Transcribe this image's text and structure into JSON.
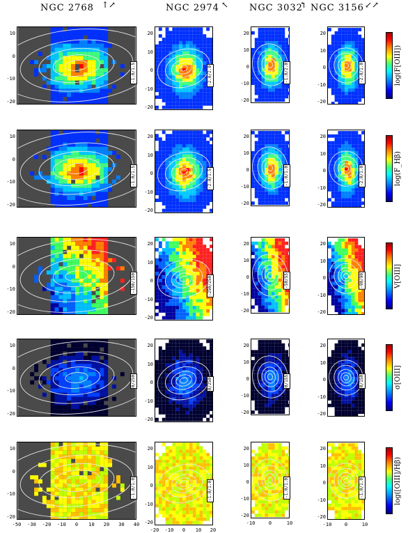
{
  "galaxies": [
    {
      "name": "NGC 2768",
      "compass": "↑↗"
    },
    {
      "name": "NGC 2974",
      "compass": "↖"
    },
    {
      "name": "NGC 3032",
      "compass": "↰"
    },
    {
      "name": "NGC 3156",
      "compass": "↙↗"
    }
  ],
  "rows": [
    {
      "quantity": "log(F[OIII])",
      "ranges": [
        "-1.0/1.5",
        "-2.0/2.0",
        "-1.0/2.0",
        "-2.0/1.0"
      ]
    },
    {
      "quantity": "log(F_Hβ)",
      "ranges": [
        "-1.0/1.5",
        "-2.0/1.5",
        "-1.0/1.0",
        "-2.0/1.0"
      ]
    },
    {
      "quantity": "V[OIII]",
      "ranges": [
        "-150/150",
        "-250/250",
        "-50/55",
        "-90/90"
      ]
    },
    {
      "quantity": "σ[OIII]",
      "ranges": [
        "0/250",
        "0/250",
        "0/155",
        "0/150"
      ]
    },
    {
      "quantity": "log([OIII]/Hβ)",
      "ranges": [
        "-1.0/1.0",
        "-1.0/1.0",
        "-1.0/1.0",
        "-1.0/1.0"
      ]
    }
  ],
  "axes": {
    "col1_y": [
      "10",
      "0",
      "-10",
      "-20"
    ],
    "col2_y": [
      "20",
      "10",
      "0",
      "-10",
      "-20"
    ],
    "col3_y": [
      "20",
      "10",
      "0",
      "-10",
      "-20"
    ],
    "col4_y": [
      "20",
      "10",
      "0",
      "-10",
      "-20"
    ],
    "col1_x": [
      "-50",
      "-30",
      "-20",
      "-10",
      "0",
      "10",
      "20",
      "30",
      "40"
    ],
    "col2_x": [
      "-20",
      "-10",
      "0",
      "10",
      "20"
    ],
    "col3_x": [
      "-10",
      "0",
      "10"
    ],
    "col4_x": [
      "-10",
      "0",
      "10"
    ]
  },
  "colors": {
    "masked": "#4a4a4a",
    "contour": "#e8e8e8"
  }
}
